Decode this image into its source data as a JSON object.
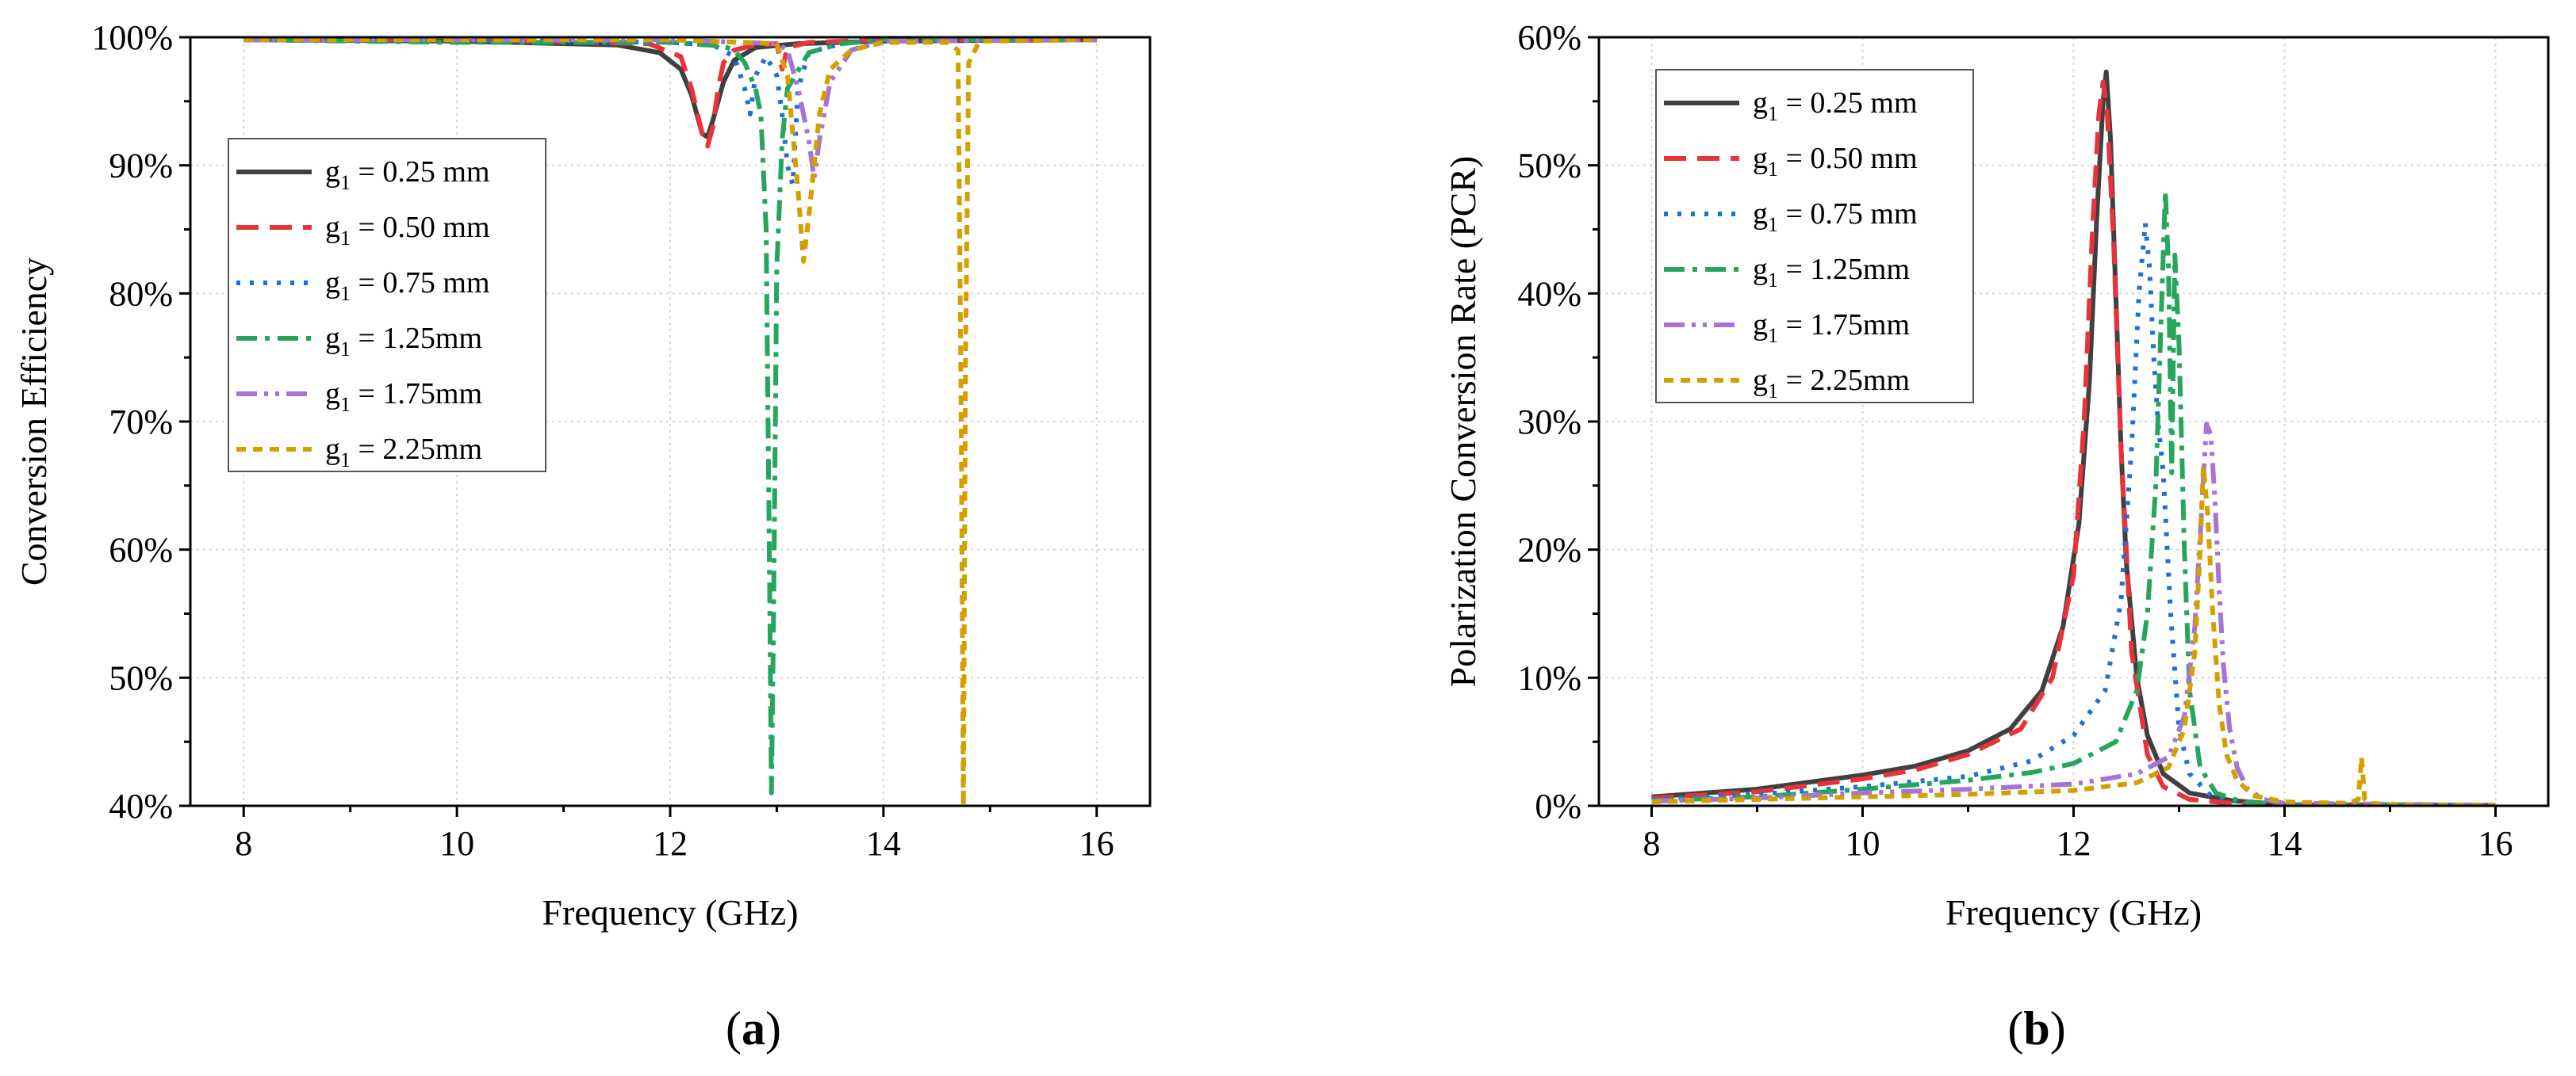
{
  "figure": {
    "panels": [
      "(a)",
      "(b)"
    ],
    "panel_letters": [
      "a",
      "b"
    ]
  },
  "series_styles": [
    {
      "label": "g1 = 0.25 mm",
      "sub": "1",
      "pre": "g",
      "post": " = 0.25 mm",
      "color": "#404040",
      "dash": ""
    },
    {
      "label": "g1 = 0.50 mm",
      "sub": "1",
      "pre": "g",
      "post": " = 0.50 mm",
      "color": "#e8333b",
      "dash": "28 14"
    },
    {
      "label": "g1 = 0.75 mm",
      "sub": "1",
      "pre": "g",
      "post": " = 0.75 mm",
      "color": "#1f6fd6",
      "dash": "5 12"
    },
    {
      "label": "g1 = 1.25mm",
      "sub": "1",
      "pre": "g",
      "post": " = 1.25mm",
      "color": "#26a55c",
      "dash": "26 10 6 10"
    },
    {
      "label": "g1 = 1.75mm",
      "sub": "1",
      "pre": "g",
      "post": " = 1.75mm",
      "color": "#a673d6",
      "dash": "26 9 5 9 5 9"
    },
    {
      "label": "g1 = 2.25mm",
      "sub": "1",
      "pre": "g",
      "post": " = 2.25mm",
      "color": "#d4a000",
      "dash": "12 9"
    }
  ],
  "chart_data": [
    {
      "id": "a",
      "type": "line",
      "title": "",
      "xlabel": "Frequency (GHz)",
      "ylabel": "Conversion Efficiency",
      "xlim": [
        7.5,
        16.5
      ],
      "ylim": [
        40,
        100
      ],
      "xticks": [
        8,
        10,
        12,
        14,
        16
      ],
      "xtick_labels": [
        "8",
        "10",
        "12",
        "14",
        "16"
      ],
      "yticks": [
        40,
        50,
        60,
        70,
        80,
        90,
        100
      ],
      "ytick_labels": [
        "40%",
        "50%",
        "60%",
        "70%",
        "80%",
        "90%",
        "100%"
      ],
      "grid": true,
      "legend_position": "middle-left",
      "series": [
        {
          "name": "g1 = 0.25 mm",
          "x": [
            8,
            10,
            11.5,
            11.9,
            12.1,
            12.2,
            12.3,
            12.35,
            12.4,
            12.5,
            12.6,
            12.8,
            13.2,
            14,
            16
          ],
          "y": [
            99.8,
            99.7,
            99.4,
            98.8,
            97.5,
            95.5,
            92.5,
            92.2,
            93.5,
            96.5,
            98.2,
            99.2,
            99.5,
            99.7,
            99.8
          ]
        },
        {
          "name": "g1 = 0.50 mm",
          "x": [
            8,
            10,
            11.8,
            12.1,
            12.2,
            12.3,
            12.35,
            12.4,
            12.45,
            12.5,
            12.6,
            12.8,
            13,
            13.05,
            13.1,
            13.3,
            14,
            16
          ],
          "y": [
            99.8,
            99.8,
            99.5,
            98.5,
            96,
            92.5,
            91.5,
            93,
            96,
            98,
            99,
            99.4,
            99.5,
            97.5,
            99.2,
            99.6,
            99.8,
            99.8
          ]
        },
        {
          "name": "g1 = 0.75 mm",
          "x": [
            8,
            10,
            12,
            12.4,
            12.6,
            12.7,
            12.75,
            12.8,
            12.9,
            13,
            13.05,
            13.1,
            13.15,
            13.2,
            13.3,
            13.6,
            14,
            16
          ],
          "y": [
            99.8,
            99.8,
            99.6,
            99.4,
            98.5,
            96,
            94,
            97,
            98.5,
            97,
            94,
            90,
            88.5,
            96,
            98.8,
            99.5,
            99.8,
            99.8
          ]
        },
        {
          "name": "g1 = 1.25mm",
          "x": [
            8,
            10,
            12,
            12.5,
            12.6,
            12.7,
            12.8,
            12.85,
            12.9,
            12.93,
            12.95,
            12.97,
            13,
            13.05,
            13.1,
            13.3,
            13.6,
            14,
            16
          ],
          "y": [
            99.8,
            99.6,
            99.6,
            99.3,
            99,
            98,
            96,
            94,
            85,
            60,
            41,
            55,
            82,
            92,
            96,
            98.8,
            99.5,
            99.8,
            99.8
          ]
        },
        {
          "name": "g1 = 1.75mm",
          "x": [
            8,
            10,
            12,
            13,
            13.1,
            13.2,
            13.3,
            13.35,
            13.4,
            13.5,
            13.7,
            14,
            16
          ],
          "y": [
            99.8,
            99.8,
            99.8,
            99.5,
            99,
            96,
            92,
            89,
            92,
            96.5,
            99,
            99.7,
            99.8
          ]
        },
        {
          "name": "g1 = 2.25mm",
          "x": [
            8,
            10,
            12,
            13,
            13.1,
            13.2,
            13.25,
            13.3,
            13.4,
            13.5,
            13.7,
            14,
            14.6,
            14.7,
            14.73,
            14.75,
            14.77,
            14.8,
            14.9,
            16
          ],
          "y": [
            99.8,
            99.8,
            99.8,
            99.5,
            97,
            88,
            82.5,
            86,
            94,
            97.5,
            99,
            99.6,
            99.6,
            99,
            70,
            40,
            75,
            98,
            99.7,
            99.8
          ]
        }
      ]
    },
    {
      "id": "b",
      "type": "line",
      "title": "",
      "xlabel": "Frequency (GHz)",
      "ylabel": "Polarization Conversion Rate (PCR)",
      "xlim": [
        7.5,
        16.5
      ],
      "ylim": [
        0,
        60
      ],
      "xticks": [
        8,
        10,
        12,
        14,
        16
      ],
      "xtick_labels": [
        "8",
        "10",
        "12",
        "14",
        "16"
      ],
      "yticks": [
        0,
        10,
        20,
        30,
        40,
        50,
        60
      ],
      "ytick_labels": [
        "0%",
        "10%",
        "20%",
        "30%",
        "40%",
        "50%",
        "60%"
      ],
      "grid": true,
      "legend_position": "top-left",
      "series": [
        {
          "name": "g1 = 0.25 mm",
          "x": [
            8,
            9,
            10,
            10.5,
            11,
            11.4,
            11.7,
            11.9,
            12.05,
            12.15,
            12.22,
            12.28,
            12.31,
            12.35,
            12.4,
            12.45,
            12.5,
            12.6,
            12.7,
            12.85,
            13.1,
            13.5,
            14,
            16
          ],
          "y": [
            0.7,
            1.3,
            2.4,
            3.1,
            4.3,
            6,
            9,
            14,
            22,
            33,
            46,
            55,
            57.3,
            52,
            40,
            28,
            19,
            10,
            5.5,
            2.5,
            1,
            0.4,
            0.1,
            0.05
          ]
        },
        {
          "name": "g1 = 0.50 mm",
          "x": [
            8,
            9,
            10,
            10.5,
            11,
            11.5,
            11.8,
            12,
            12.1,
            12.18,
            12.24,
            12.28,
            12.32,
            12.38,
            12.45,
            12.55,
            12.7,
            12.85,
            13.1,
            13.5,
            14,
            16
          ],
          "y": [
            0.6,
            1.1,
            2.1,
            2.8,
            4,
            6,
            10,
            18,
            30,
            45,
            54,
            56.5,
            54,
            44,
            28,
            12,
            4,
            1.5,
            0.5,
            0.2,
            0.1,
            0.05
          ]
        },
        {
          "name": "g1 = 0.75 mm",
          "x": [
            8,
            9,
            10,
            11,
            11.6,
            12,
            12.3,
            12.45,
            12.55,
            12.62,
            12.68,
            12.72,
            12.76,
            12.8,
            12.85,
            12.92,
            13,
            13.1,
            13.3,
            13.6,
            14,
            16
          ],
          "y": [
            0.5,
            0.9,
            1.5,
            2.3,
            3.5,
            5.5,
            9,
            16,
            28,
            40,
            45.5,
            42,
            35,
            30,
            26,
            15,
            6,
            2.5,
            0.8,
            0.3,
            0.1,
            0.05
          ]
        },
        {
          "name": "g1 = 1.25mm",
          "x": [
            8,
            9,
            10,
            11,
            11.6,
            12,
            12.4,
            12.6,
            12.7,
            12.78,
            12.83,
            12.87,
            12.9,
            12.93,
            12.96,
            13,
            13.05,
            13.1,
            13.2,
            13.35,
            13.6,
            14,
            16
          ],
          "y": [
            0.4,
            0.7,
            1.3,
            2,
            2.6,
            3.3,
            5,
            9,
            15,
            25,
            38,
            48,
            42,
            26,
            43,
            36,
            20,
            9,
            3,
            1,
            0.3,
            0.1,
            0.05
          ]
        },
        {
          "name": "g1 = 1.75mm",
          "x": [
            8,
            9,
            10,
            11,
            12,
            12.6,
            12.9,
            13.05,
            13.15,
            13.22,
            13.26,
            13.3,
            13.34,
            13.38,
            13.42,
            13.48,
            13.55,
            13.65,
            13.8,
            14,
            16
          ],
          "y": [
            0.35,
            0.6,
            1,
            1.3,
            1.7,
            2.5,
            3.8,
            7,
            14,
            24,
            29.8,
            29,
            24,
            17,
            11,
            6,
            3,
            1.3,
            0.5,
            0.2,
            0.05
          ]
        },
        {
          "name": "g1 = 2.25mm",
          "x": [
            8,
            9,
            10,
            11,
            12,
            12.6,
            12.9,
            13.05,
            13.15,
            13.2,
            13.23,
            13.27,
            13.32,
            13.38,
            13.45,
            13.55,
            13.7,
            14,
            14.6,
            14.7,
            14.73,
            14.76,
            14.8,
            15,
            16
          ],
          "y": [
            0.3,
            0.5,
            0.7,
            0.9,
            1.2,
            1.8,
            3,
            6,
            12,
            20,
            26.5,
            23,
            15,
            8,
            4,
            2,
            0.8,
            0.3,
            0.2,
            0.5,
            3.8,
            0.5,
            0.2,
            0.1,
            0.05
          ]
        }
      ]
    }
  ]
}
